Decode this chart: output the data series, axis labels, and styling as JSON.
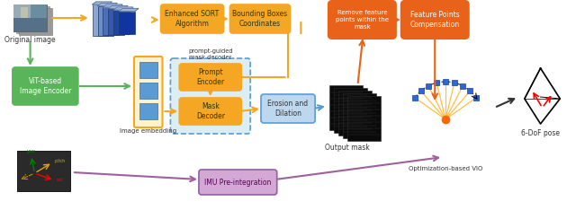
{
  "bg_color": "#ffffff",
  "colors": {
    "orange_yellow": "#F5A623",
    "orange_dark": "#E8621A",
    "green": "#5AB55A",
    "blue": "#5B9BD5",
    "purple": "#A060A0",
    "light_blue_fill": "#BDD7EE",
    "yellow_fill": "#FFF2CC",
    "dashed_fill": "#DAEEF3",
    "dashed_edge": "#5B9BD5"
  },
  "labels": {
    "original_image": "Original image",
    "vit_encoder": "ViT-based\nImage Encoder",
    "enhanced_sort": "Enhanced SORT\nAlgorithm",
    "bounding_boxes": "Bounding Boxes\nCoordinates",
    "remove_feature": "Remove feature\npoints within the\nmask",
    "feature_comp": "Feature Points\nCompensation",
    "prompt_encoder": "Prompt\nEncoder",
    "mask_decoder": "Mask\nDecoder",
    "erosion": "Erosion and\nDilation",
    "output_mask": "Output mask",
    "imu": "IMU Pre-integration",
    "vio": "Optimization-based VIO",
    "sixdof": "6-DoF pose",
    "prompt_guided": "prompt-guided\nmask decoder",
    "image_embedding": "Image embedding"
  }
}
